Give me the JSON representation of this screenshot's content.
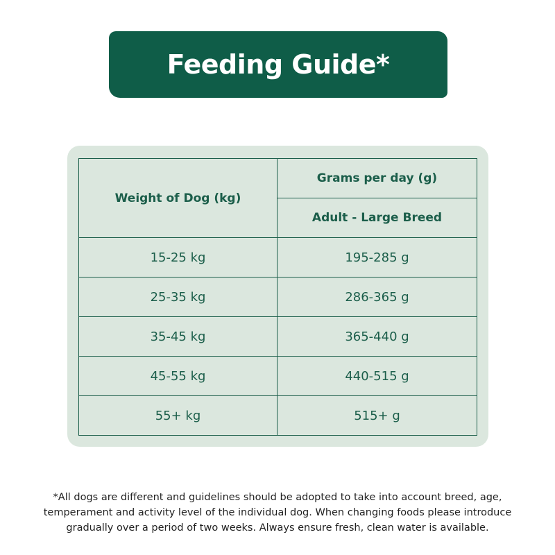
{
  "title": "Feeding Guide*",
  "table": {
    "header_weight": "Weight of Dog (kg)",
    "header_grams": "Grams per day (g)",
    "header_breed": "Adult - Large Breed",
    "rows": [
      {
        "weight": "15-25 kg",
        "grams": "195-285 g"
      },
      {
        "weight": "25-35 kg",
        "grams": "286-365 g"
      },
      {
        "weight": "35-45 kg",
        "grams": "365-440 g"
      },
      {
        "weight": "45-55 kg",
        "grams": "440-515 g"
      },
      {
        "weight": "55+ kg",
        "grams": "515+ g"
      }
    ]
  },
  "footnote": {
    "line1": "*All dogs are different and guidelines should be adopted to take into account breed, age,",
    "line2": "temperament and activity level of the individual dog. When changing foods please introduce",
    "line3": "gradually over a period of two weeks. Always ensure fresh, clean water is available."
  },
  "colors": {
    "brand_green": "#0f5d48",
    "panel_bg": "#dbe7de",
    "table_text": "#1b5e4a"
  }
}
